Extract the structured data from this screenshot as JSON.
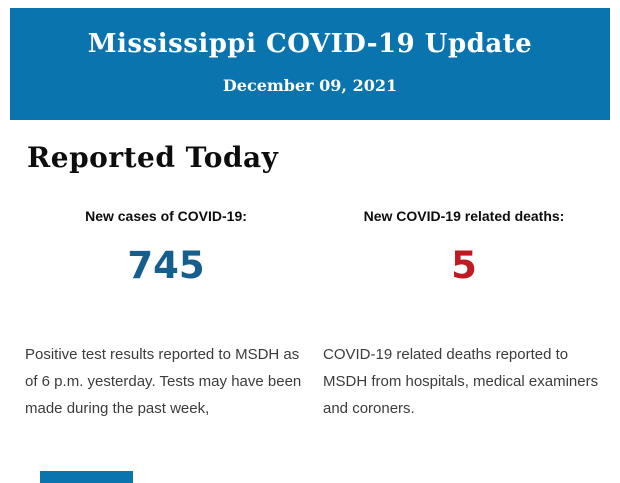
{
  "header": {
    "title": "Mississippi COVID-19 Update",
    "date": "December 09, 2021"
  },
  "section": {
    "heading": "Reported Today"
  },
  "stats": [
    {
      "id": "new-cases",
      "label": "New cases of COVID-19:",
      "value": "745",
      "description": "Positive test results reported to MSDH as of 6 p.m. yesterday. Tests may have been made during the past week,"
    },
    {
      "id": "new-deaths",
      "label": "New COVID-19 related deaths:",
      "value": "5",
      "description": "COVID-19 related deaths reported to MSDH from hospitals, medical examiners and coroners."
    }
  ],
  "colors": {
    "header_blue": "#0a74af",
    "header_text": "#ffffff",
    "cases_value_blue": "#155e8e",
    "deaths_value_red": "#bf1a20",
    "heading_black": "#0d0d0d",
    "body_text_gray": "#3c3c3c"
  }
}
